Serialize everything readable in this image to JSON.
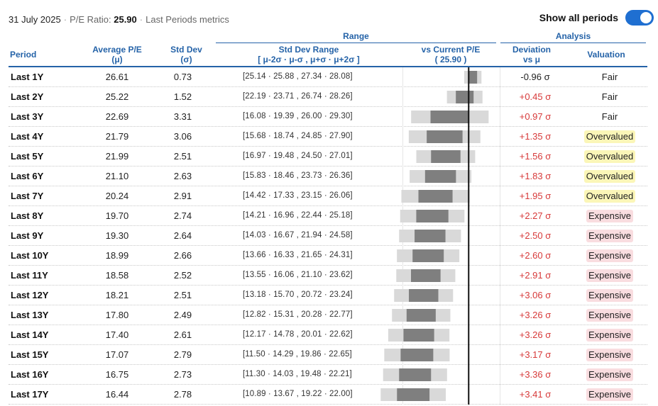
{
  "header": {
    "date": "31 July 2025",
    "pe_label": "P/E Ratio:",
    "pe_value": "25.90",
    "subtitle": "Last Periods metrics",
    "toggle_label": "Show all periods",
    "toggle_on": true
  },
  "groups": {
    "range": "Range",
    "analysis": "Analysis"
  },
  "columns": {
    "period": "Period",
    "avg_line1": "Average P/E",
    "avg_line2": "(μ)",
    "std_line1": "Std Dev",
    "std_line2": "(σ)",
    "range_line1": "Std Dev Range",
    "range_line2": "[ μ-2σ · μ-σ , μ+σ · μ+2σ ]",
    "vs_line1": "vs Current P/E",
    "vs_line2": "( 25.90 )",
    "dev_line1": "Deviation",
    "dev_line2": "vs μ",
    "valuation": "Valuation"
  },
  "colors": {
    "accent": "#2563a8",
    "positive_dev": "#d73a3a",
    "overvalued_bg": "#fbf6b8",
    "expensive_bg": "#f9dde0",
    "bar_outer": "#d9d9d9",
    "bar_inner": "#7f7f7f",
    "current_line": "#111111"
  },
  "chart_data": {
    "type": "table",
    "current_pe": 25.9,
    "rows": [
      {
        "period": "Last 1Y",
        "avg": "26.61",
        "std": "0.73",
        "r": [
          "25.14",
          "25.88",
          "27.34",
          "28.08"
        ],
        "dev": "-0.96 σ",
        "valuation": "Fair"
      },
      {
        "period": "Last 2Y",
        "avg": "25.22",
        "std": "1.52",
        "r": [
          "22.19",
          "23.71",
          "26.74",
          "28.26"
        ],
        "dev": "+0.45 σ",
        "valuation": "Fair"
      },
      {
        "period": "Last 3Y",
        "avg": "22.69",
        "std": "3.31",
        "r": [
          "16.08",
          "19.39",
          "26.00",
          "29.30"
        ],
        "dev": "+0.97 σ",
        "valuation": "Fair"
      },
      {
        "period": "Last 4Y",
        "avg": "21.79",
        "std": "3.06",
        "r": [
          "15.68",
          "18.74",
          "24.85",
          "27.90"
        ],
        "dev": "+1.35 σ",
        "valuation": "Overvalued"
      },
      {
        "period": "Last 5Y",
        "avg": "21.99",
        "std": "2.51",
        "r": [
          "16.97",
          "19.48",
          "24.50",
          "27.01"
        ],
        "dev": "+1.56 σ",
        "valuation": "Overvalued"
      },
      {
        "period": "Last 6Y",
        "avg": "21.10",
        "std": "2.63",
        "r": [
          "15.83",
          "18.46",
          "23.73",
          "26.36"
        ],
        "dev": "+1.83 σ",
        "valuation": "Overvalued"
      },
      {
        "period": "Last 7Y",
        "avg": "20.24",
        "std": "2.91",
        "r": [
          "14.42",
          "17.33",
          "23.15",
          "26.06"
        ],
        "dev": "+1.95 σ",
        "valuation": "Overvalued"
      },
      {
        "period": "Last 8Y",
        "avg": "19.70",
        "std": "2.74",
        "r": [
          "14.21",
          "16.96",
          "22.44",
          "25.18"
        ],
        "dev": "+2.27 σ",
        "valuation": "Expensive"
      },
      {
        "period": "Last 9Y",
        "avg": "19.30",
        "std": "2.64",
        "r": [
          "14.03",
          "16.67",
          "21.94",
          "24.58"
        ],
        "dev": "+2.50 σ",
        "valuation": "Expensive"
      },
      {
        "period": "Last 10Y",
        "avg": "18.99",
        "std": "2.66",
        "r": [
          "13.66",
          "16.33",
          "21.65",
          "24.31"
        ],
        "dev": "+2.60 σ",
        "valuation": "Expensive"
      },
      {
        "period": "Last 11Y",
        "avg": "18.58",
        "std": "2.52",
        "r": [
          "13.55",
          "16.06",
          "21.10",
          "23.62"
        ],
        "dev": "+2.91 σ",
        "valuation": "Expensive"
      },
      {
        "period": "Last 12Y",
        "avg": "18.21",
        "std": "2.51",
        "r": [
          "13.18",
          "15.70",
          "20.72",
          "23.24"
        ],
        "dev": "+3.06 σ",
        "valuation": "Expensive"
      },
      {
        "period": "Last 13Y",
        "avg": "17.80",
        "std": "2.49",
        "r": [
          "12.82",
          "15.31",
          "20.28",
          "22.77"
        ],
        "dev": "+3.26 σ",
        "valuation": "Expensive"
      },
      {
        "period": "Last 14Y",
        "avg": "17.40",
        "std": "2.61",
        "r": [
          "12.17",
          "14.78",
          "20.01",
          "22.62"
        ],
        "dev": "+3.26 σ",
        "valuation": "Expensive"
      },
      {
        "period": "Last 15Y",
        "avg": "17.07",
        "std": "2.79",
        "r": [
          "11.50",
          "14.29",
          "19.86",
          "22.65"
        ],
        "dev": "+3.17 σ",
        "valuation": "Expensive"
      },
      {
        "period": "Last 16Y",
        "avg": "16.75",
        "std": "2.73",
        "r": [
          "11.30",
          "14.03",
          "19.48",
          "22.21"
        ],
        "dev": "+3.36 σ",
        "valuation": "Expensive"
      },
      {
        "period": "Last 17Y",
        "avg": "16.44",
        "std": "2.78",
        "r": [
          "10.89",
          "13.67",
          "19.22",
          "22.00"
        ],
        "dev": "+3.41 σ",
        "valuation": "Expensive"
      }
    ]
  }
}
